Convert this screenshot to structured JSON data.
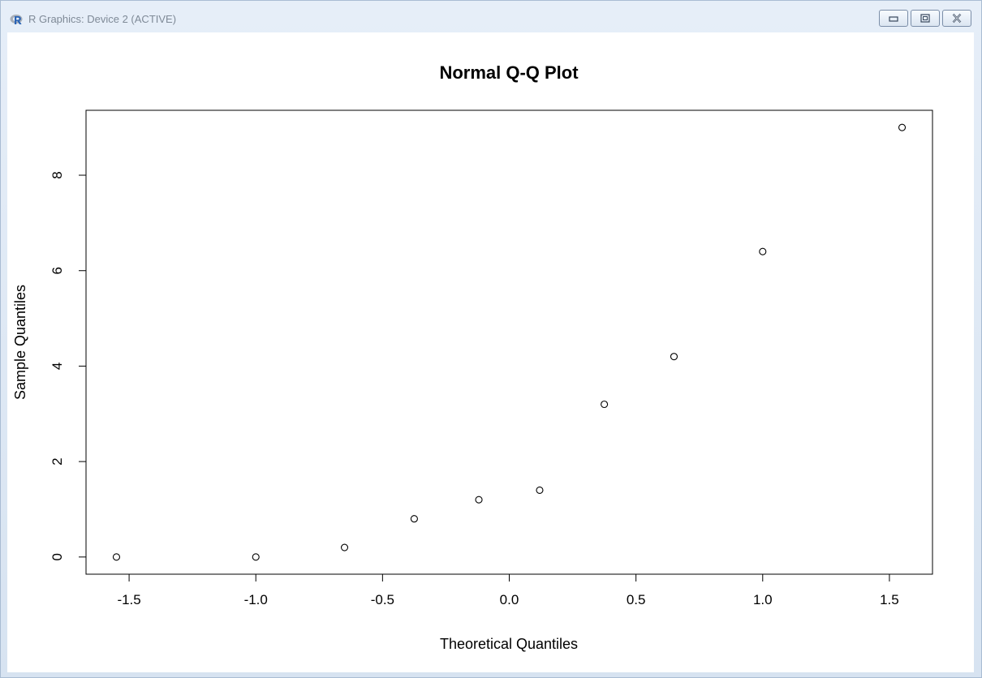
{
  "window": {
    "title": "R Graphics: Device 2 (ACTIVE)",
    "app_icon": "r-logo-icon",
    "buttons": [
      "minimize-icon",
      "restore-icon",
      "close-icon"
    ]
  },
  "chart_data": {
    "type": "scatter",
    "title": "Normal Q-Q Plot",
    "xlabel": "Theoretical Quantiles",
    "ylabel": "Sample Quantiles",
    "xlim": [
      -1.67,
      1.67
    ],
    "ylim": [
      -0.36,
      9.36
    ],
    "xticks": [
      -1.5,
      -1.0,
      -0.5,
      0.0,
      0.5,
      1.0,
      1.5
    ],
    "xtick_labels": [
      "-1.5",
      "-1.0",
      "-0.5",
      "0.0",
      "0.5",
      "1.0",
      "1.5"
    ],
    "yticks": [
      0,
      2,
      4,
      6,
      8
    ],
    "ytick_labels": [
      "0",
      "2",
      "4",
      "6",
      "8"
    ],
    "grid": false,
    "legend": "none",
    "marker": "open-circle",
    "points": [
      {
        "x": -1.55,
        "y": 0.0
      },
      {
        "x": -1.0,
        "y": 0.0
      },
      {
        "x": -0.65,
        "y": 0.2
      },
      {
        "x": -0.375,
        "y": 0.8
      },
      {
        "x": -0.12,
        "y": 1.2
      },
      {
        "x": 0.12,
        "y": 1.4
      },
      {
        "x": 0.375,
        "y": 3.2
      },
      {
        "x": 0.65,
        "y": 4.2
      },
      {
        "x": 1.0,
        "y": 6.4
      },
      {
        "x": 1.55,
        "y": 9.0
      }
    ]
  }
}
